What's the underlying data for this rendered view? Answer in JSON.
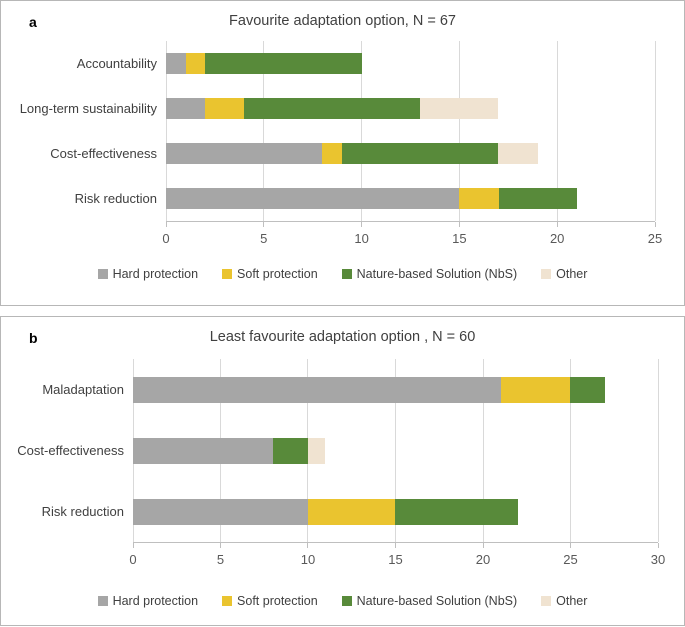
{
  "figure": {
    "panel_a": {
      "panel_label": "a",
      "title": "Favourite adaptation option, N = 67"
    },
    "panel_b": {
      "panel_label": "b",
      "title": "Least favourite adaptation option , N = 60"
    }
  },
  "chart_data": [
    {
      "type": "bar",
      "stacked": true,
      "orientation": "horizontal",
      "title": "Favourite adaptation option, N = 67",
      "n": 67,
      "categories": [
        "Accountability",
        "Long-term sustainability",
        "Cost-effectiveness",
        "Risk reduction"
      ],
      "series": [
        {
          "name": "Hard protection",
          "values": [
            1,
            2,
            8,
            15
          ]
        },
        {
          "name": "Soft protection",
          "values": [
            1,
            2,
            1,
            2
          ]
        },
        {
          "name": "Nature-based Solution (NbS)",
          "values": [
            8,
            9,
            8,
            4
          ]
        },
        {
          "name": "Other",
          "values": [
            0,
            4,
            2,
            0
          ]
        }
      ],
      "category_totals": [
        10,
        17,
        19,
        21
      ],
      "xlabel": "",
      "ylabel": "",
      "xlim": [
        0,
        25
      ],
      "xticks": [
        0,
        5,
        10,
        15,
        20,
        25
      ],
      "grid": true,
      "legend_position": "bottom"
    },
    {
      "type": "bar",
      "stacked": true,
      "orientation": "horizontal",
      "title": "Least favourite adaptation option , N = 60",
      "n": 60,
      "categories": [
        "Maladaptation",
        "Cost-effectiveness",
        "Risk reduction"
      ],
      "series": [
        {
          "name": "Hard protection",
          "values": [
            21,
            8,
            10
          ]
        },
        {
          "name": "Soft protection",
          "values": [
            4,
            0,
            5
          ]
        },
        {
          "name": "Nature-based Solution (NbS)",
          "values": [
            2,
            2,
            7
          ]
        },
        {
          "name": "Other",
          "values": [
            0,
            1,
            0
          ]
        }
      ],
      "category_totals": [
        27,
        11,
        22
      ],
      "xlabel": "",
      "ylabel": "",
      "xlim": [
        0,
        30
      ],
      "xticks": [
        0,
        5,
        10,
        15,
        20,
        25,
        30
      ],
      "grid": true,
      "legend_position": "bottom"
    }
  ],
  "colors": {
    "series": [
      "#a6a6a6",
      "#eac42f",
      "#588a3a",
      "#f0e3d1"
    ],
    "gridline": "#d9d9d9",
    "axis_line": "#bfbfbf",
    "panel_border": "#b7b7b7",
    "text": "#404040",
    "tick_text": "#595959"
  }
}
